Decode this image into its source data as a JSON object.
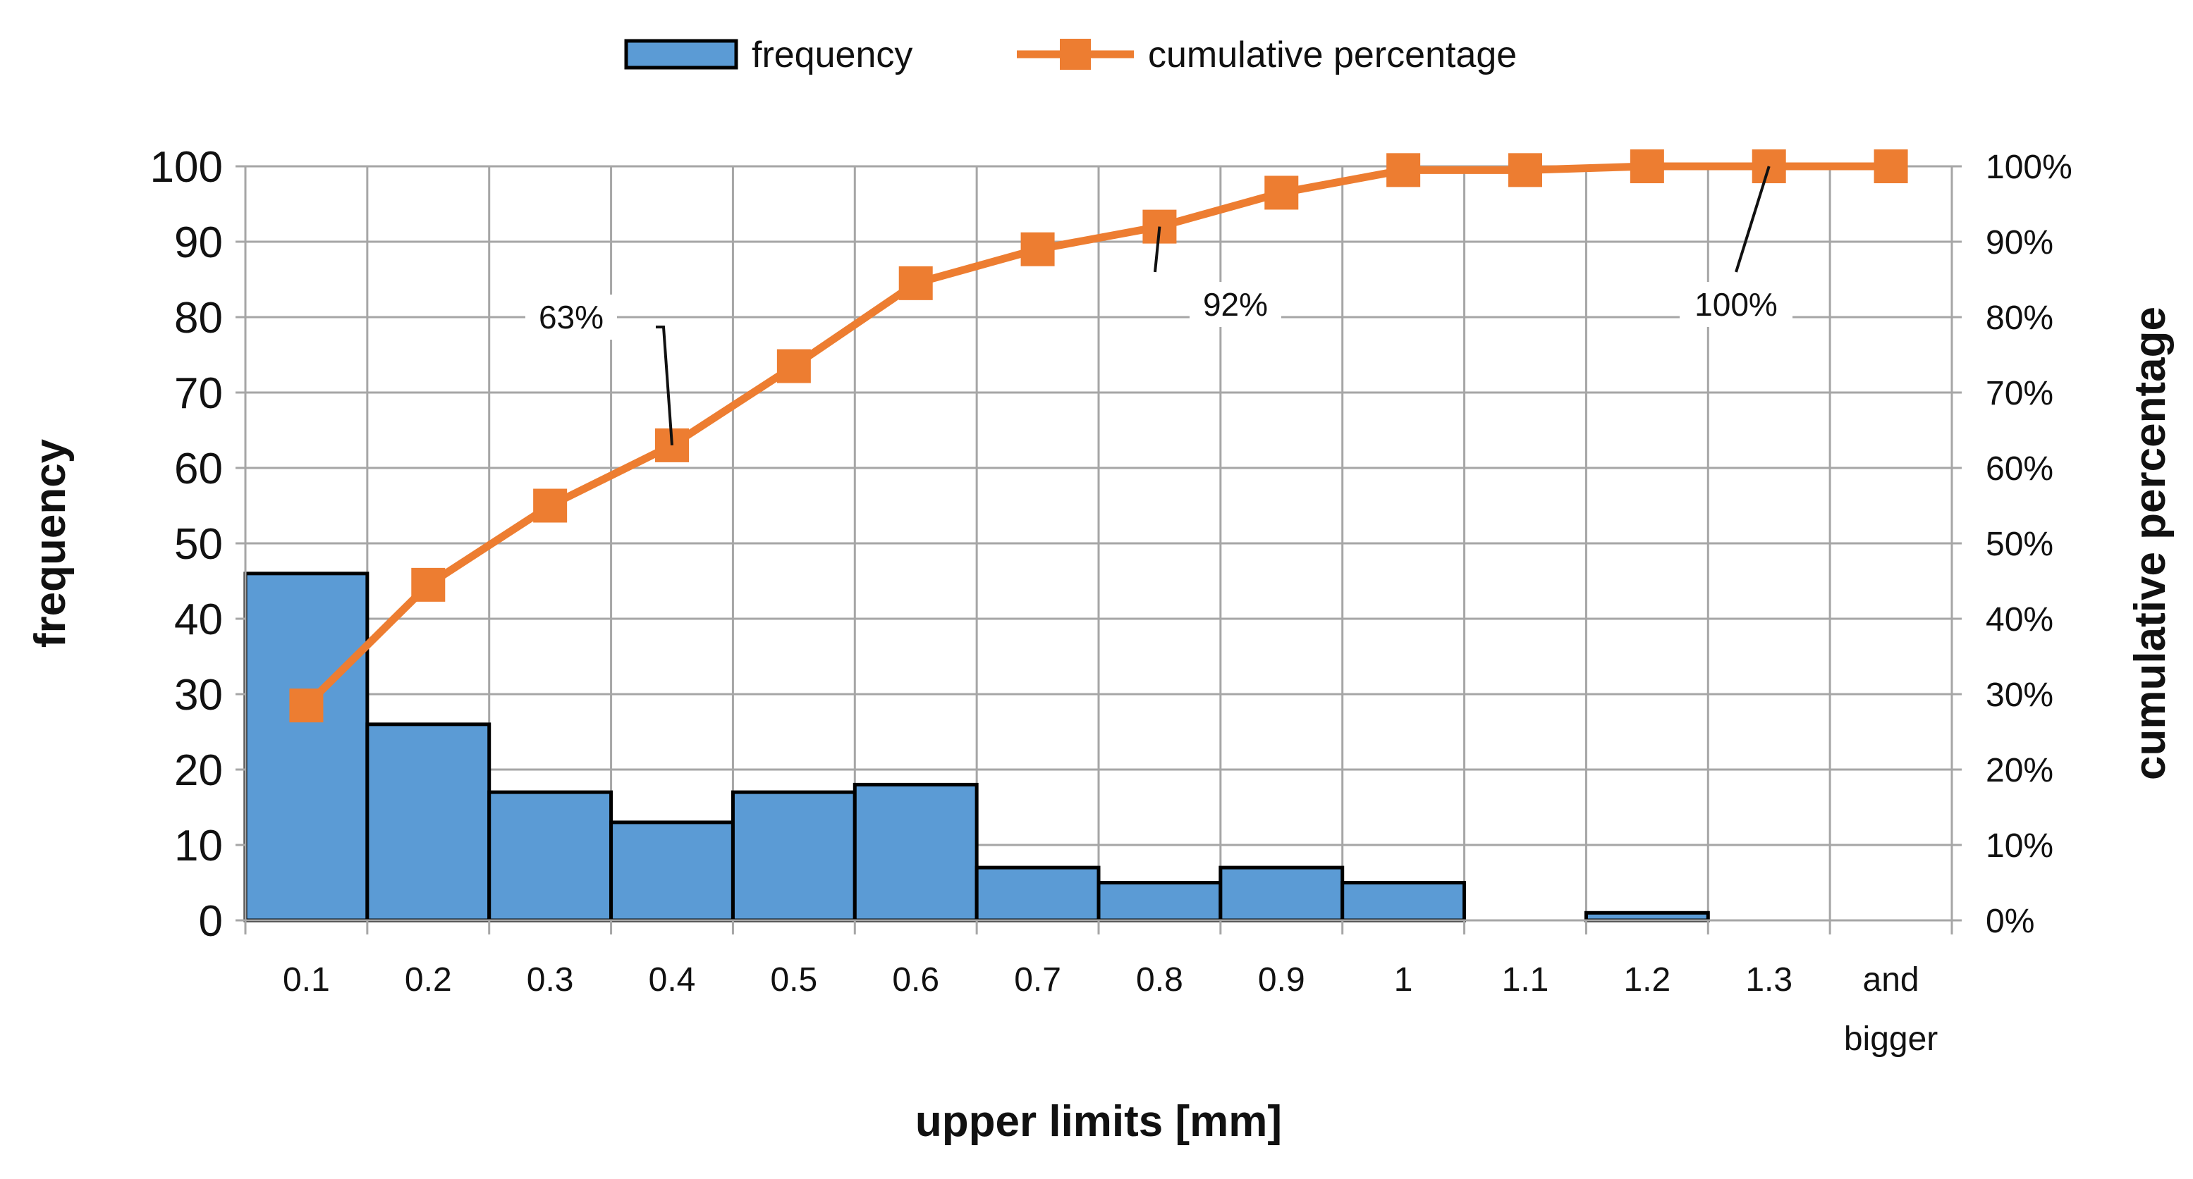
{
  "chart_data": {
    "type": "bar",
    "categories": [
      "0.1",
      "0.2",
      "0.3",
      "0.4",
      "0.5",
      "0.6",
      "0.7",
      "0.8",
      "0.9",
      "1",
      "1.1",
      "1.2",
      "1.3",
      "and bigger"
    ],
    "category_lines": [
      [
        "0.1"
      ],
      [
        "0.2"
      ],
      [
        "0.3"
      ],
      [
        "0.4"
      ],
      [
        "0.5"
      ],
      [
        "0.6"
      ],
      [
        "0.7"
      ],
      [
        "0.8"
      ],
      [
        "0.9"
      ],
      [
        "1"
      ],
      [
        "1.1"
      ],
      [
        "1.2"
      ],
      [
        "1.3"
      ],
      [
        "and",
        "bigger"
      ]
    ],
    "series": [
      {
        "name": "frequency",
        "type": "bar",
        "axis": "left",
        "color": "#5b9bd5",
        "edge_color": "#000000",
        "values": [
          46,
          26,
          17,
          13,
          17,
          18,
          7,
          5,
          7,
          5,
          0,
          1,
          0,
          0
        ]
      },
      {
        "name": "cumulative percentage",
        "type": "line",
        "marker": "square",
        "axis": "right",
        "color": "#ed7d31",
        "values": [
          28.5,
          44.5,
          55,
          63,
          73.5,
          84.5,
          89,
          92,
          96.5,
          99.5,
          99.5,
          100,
          100,
          100
        ]
      }
    ],
    "xlabel": "upper limits [mm]",
    "ylabel": "frequency",
    "y2label": "cumulative percentage",
    "ylim": [
      0,
      100
    ],
    "y2lim": [
      0,
      100
    ],
    "y_ticks": [
      "0",
      "10",
      "20",
      "30",
      "40",
      "50",
      "60",
      "70",
      "80",
      "90",
      "100"
    ],
    "y2_ticks": [
      "0%",
      "10%",
      "20%",
      "30%",
      "40%",
      "50%",
      "60%",
      "70%",
      "80%",
      "90%",
      "100%"
    ],
    "grid": true,
    "grid_color": "#a6a6a6",
    "legend_position": "top-center",
    "annotations": [
      {
        "text": "63%",
        "category_index": 3
      },
      {
        "text": "92%",
        "category_index": 7
      },
      {
        "text": "100%",
        "category_index": 12
      }
    ]
  }
}
